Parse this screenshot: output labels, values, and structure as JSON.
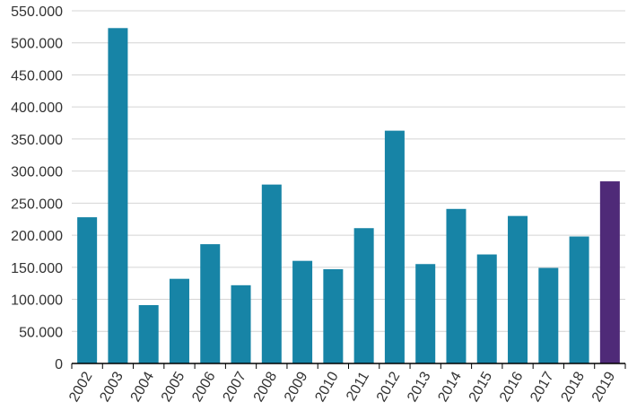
{
  "colors": {
    "bar": "#1784a6",
    "highlight": "#4f2a78",
    "grid": "#d4d4d4",
    "axis": "#000000",
    "text": "#333333"
  },
  "chart_data": {
    "type": "bar",
    "title": "",
    "xlabel": "",
    "ylabel": "",
    "categories": [
      "2002",
      "2003",
      "2004",
      "2005",
      "2006",
      "2007",
      "2008",
      "2009",
      "2010",
      "2011",
      "2012",
      "2013",
      "2014",
      "2015",
      "2016",
      "2017",
      "2018",
      "2019"
    ],
    "values": [
      228000,
      523000,
      91000,
      132000,
      186000,
      122000,
      279000,
      160000,
      147000,
      211000,
      363000,
      155000,
      241000,
      170000,
      230000,
      149000,
      198000,
      284000
    ],
    "highlight_category": "2019",
    "ylim": [
      0,
      550000
    ],
    "yticks": [
      0,
      50000,
      100000,
      150000,
      200000,
      250000,
      300000,
      350000,
      400000,
      450000,
      500000,
      550000
    ],
    "ytick_labels": [
      "0",
      "50.000",
      "100.000",
      "150.000",
      "200.000",
      "250.000",
      "300.000",
      "350.000",
      "400.000",
      "450.000",
      "500.000",
      "550.000"
    ],
    "grid": true,
    "legend": "none"
  }
}
